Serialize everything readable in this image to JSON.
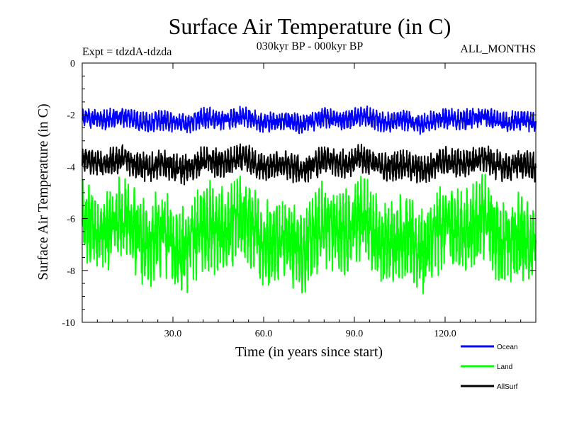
{
  "chart_data": {
    "type": "line",
    "title": "Surface Air Temperature (in C)",
    "subtitle_left": "Expt = tdzdA-tdzda",
    "subtitle_center": "030kyr BP - 000kyr BP",
    "subtitle_right": "ALL_MONTHS",
    "xlabel": "Time (in years since start)",
    "ylabel": "Surface Air Temperature (in C)",
    "xlim": [
      0,
      150
    ],
    "ylim": [
      -10,
      0
    ],
    "x_ticks": [
      30,
      60,
      90,
      120
    ],
    "x_tick_labels": [
      "30.0",
      "60.0",
      "90.0",
      "120.0"
    ],
    "y_ticks": [
      0,
      -2,
      -4,
      -6,
      -8,
      -10
    ],
    "y_tick_labels": [
      "0",
      "-2",
      "-4",
      "-6",
      "-8",
      "-10"
    ],
    "series": [
      {
        "name": "Ocean",
        "color": "#0000ff",
        "mean": -2.2,
        "amplitude": 0.35,
        "min": -2.9,
        "max": -1.4
      },
      {
        "name": "Land",
        "color": "#00ff00",
        "mean": -6.6,
        "amplitude": 1.5,
        "min": -9.5,
        "max": -4.3
      },
      {
        "name": "AllSurf",
        "color": "#000000",
        "mean": -3.9,
        "amplitude": 0.5,
        "min": -4.9,
        "max": -2.8
      }
    ]
  }
}
